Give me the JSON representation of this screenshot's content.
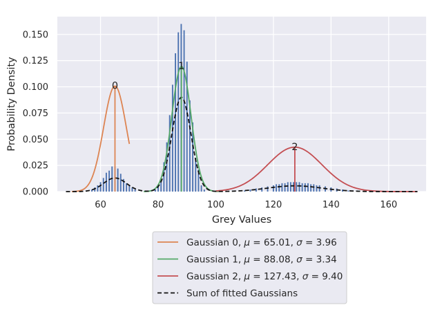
{
  "chart_data": {
    "type": "bar",
    "xlabel": "Grey Values",
    "ylabel": "Probability Density",
    "xlim": [
      45,
      173
    ],
    "ylim": [
      0,
      0.167
    ],
    "xticks": [
      "60",
      "80",
      "100",
      "120",
      "140",
      "160"
    ],
    "xtick_values": [
      60,
      80,
      100,
      120,
      140,
      160
    ],
    "yticks": [
      "0.000",
      "0.025",
      "0.050",
      "0.075",
      "0.100",
      "0.125",
      "0.150"
    ],
    "ytick_values": [
      0,
      0.025,
      0.05,
      0.075,
      0.1,
      0.125,
      0.15
    ],
    "grid": true,
    "background_color": "#eaeaf2",
    "legend_location": "below plot, centered",
    "histogram": {
      "color": "#4c72b0",
      "bin_width": 0.45,
      "bins": [
        {
          "x": 57,
          "y": 0.002
        },
        {
          "x": 58,
          "y": 0.004
        },
        {
          "x": 59,
          "y": 0.006
        },
        {
          "x": 60,
          "y": 0.009
        },
        {
          "x": 61,
          "y": 0.013
        },
        {
          "x": 62,
          "y": 0.018
        },
        {
          "x": 63,
          "y": 0.02
        },
        {
          "x": 64,
          "y": 0.024
        },
        {
          "x": 65,
          "y": 0.024
        },
        {
          "x": 66,
          "y": 0.022
        },
        {
          "x": 67,
          "y": 0.017
        },
        {
          "x": 68,
          "y": 0.012
        },
        {
          "x": 69,
          "y": 0.008
        },
        {
          "x": 70,
          "y": 0.006
        },
        {
          "x": 71,
          "y": 0.004
        },
        {
          "x": 72,
          "y": 0.002
        },
        {
          "x": 79,
          "y": 0.002
        },
        {
          "x": 80,
          "y": 0.005
        },
        {
          "x": 81,
          "y": 0.01
        },
        {
          "x": 82,
          "y": 0.028
        },
        {
          "x": 83,
          "y": 0.047
        },
        {
          "x": 84,
          "y": 0.073
        },
        {
          "x": 85,
          "y": 0.102
        },
        {
          "x": 86,
          "y": 0.132
        },
        {
          "x": 87,
          "y": 0.152
        },
        {
          "x": 88,
          "y": 0.16
        },
        {
          "x": 89,
          "y": 0.154
        },
        {
          "x": 90,
          "y": 0.124
        },
        {
          "x": 91,
          "y": 0.087
        },
        {
          "x": 92,
          "y": 0.066
        },
        {
          "x": 93,
          "y": 0.032
        },
        {
          "x": 94,
          "y": 0.021
        },
        {
          "x": 95,
          "y": 0.006
        },
        {
          "x": 96,
          "y": 0.002
        },
        {
          "x": 110,
          "y": 0.001
        },
        {
          "x": 112,
          "y": 0.002
        },
        {
          "x": 114,
          "y": 0.003
        },
        {
          "x": 116,
          "y": 0.004
        },
        {
          "x": 118,
          "y": 0.005
        },
        {
          "x": 120,
          "y": 0.006
        },
        {
          "x": 121,
          "y": 0.007
        },
        {
          "x": 122,
          "y": 0.007
        },
        {
          "x": 123,
          "y": 0.008
        },
        {
          "x": 124,
          "y": 0.008
        },
        {
          "x": 125,
          "y": 0.009
        },
        {
          "x": 126,
          "y": 0.009
        },
        {
          "x": 127,
          "y": 0.009
        },
        {
          "x": 128,
          "y": 0.009
        },
        {
          "x": 129,
          "y": 0.009
        },
        {
          "x": 130,
          "y": 0.008
        },
        {
          "x": 131,
          "y": 0.008
        },
        {
          "x": 132,
          "y": 0.008
        },
        {
          "x": 133,
          "y": 0.007
        },
        {
          "x": 134,
          "y": 0.007
        },
        {
          "x": 135,
          "y": 0.006
        },
        {
          "x": 136,
          "y": 0.006
        },
        {
          "x": 138,
          "y": 0.005
        },
        {
          "x": 140,
          "y": 0.004
        },
        {
          "x": 142,
          "y": 0.003
        },
        {
          "x": 144,
          "y": 0.002
        },
        {
          "x": 146,
          "y": 0.001
        }
      ]
    },
    "series": [
      {
        "name": "Gaussian 0, μ = 65.01, σ = 3.96",
        "label_prefix": "Gaussian 0, ",
        "mu_value": "65.01",
        "sigma_value": "3.96",
        "mu": 65.01,
        "sigma": 3.96,
        "peak": 0.1007,
        "peak_label": "0",
        "color": "#dd8452",
        "style": "solid",
        "x_range": [
          50,
          70
        ]
      },
      {
        "name": "Gaussian 1, μ = 88.08, σ = 3.34",
        "label_prefix": "Gaussian 1, ",
        "mu_value": "88.08",
        "sigma_value": "3.34",
        "mu": 88.08,
        "sigma": 3.34,
        "peak": 0.1194,
        "peak_label": "1",
        "color": "#55a868",
        "style": "solid",
        "x_range": [
          75,
          101
        ]
      },
      {
        "name": "Gaussian 2, μ = 127.43, σ = 9.40",
        "label_prefix": "Gaussian 2, ",
        "mu_value": "127.43",
        "sigma_value": "9.40",
        "mu": 127.43,
        "sigma": 9.4,
        "peak": 0.0424,
        "peak_label": "2",
        "color": "#c44e52",
        "style": "solid",
        "x_range": [
          100,
          170
        ]
      },
      {
        "name": "Sum of fitted Gaussians",
        "color": "#111111",
        "style": "dashed",
        "x_range": [
          48,
          170
        ],
        "components": [
          {
            "mu": 65.01,
            "sigma": 3.96,
            "peak": 0.013
          },
          {
            "mu": 88.08,
            "sigma": 3.34,
            "peak": 0.09
          },
          {
            "mu": 127.43,
            "sigma": 9.4,
            "peak": 0.0055
          }
        ]
      }
    ]
  }
}
